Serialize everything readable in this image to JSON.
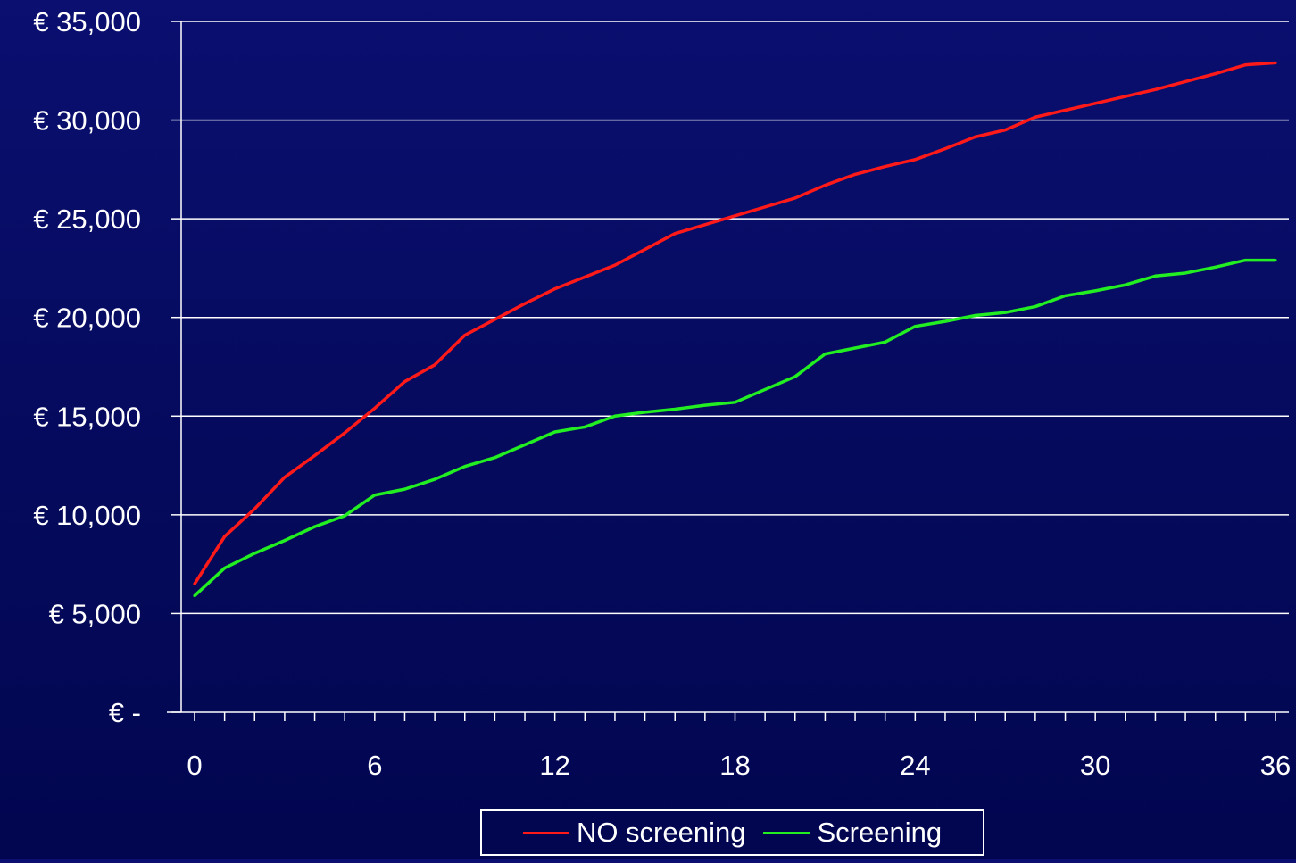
{
  "chart_data": {
    "type": "line",
    "title": "",
    "xlabel": "",
    "ylabel": "",
    "x_ticks": [
      "0",
      "6",
      "12",
      "18",
      "24",
      "30",
      "36"
    ],
    "y_ticks": [
      "€ -",
      "€ 5,000",
      "€ 10,000",
      "€ 15,000",
      "€ 20,000",
      "€ 25,000",
      "€ 30,000",
      "€ 35,000"
    ],
    "xlim": [
      0,
      36
    ],
    "ylim": [
      0,
      35000
    ],
    "grid": "horizontal",
    "legend_position": "bottom",
    "x": [
      0,
      1,
      2,
      3,
      4,
      5,
      6,
      7,
      8,
      9,
      10,
      11,
      12,
      13,
      14,
      15,
      16,
      17,
      18,
      19,
      20,
      21,
      22,
      23,
      24,
      25,
      26,
      27,
      28,
      29,
      30,
      31,
      32,
      33,
      34,
      35,
      36
    ],
    "series": [
      {
        "name": "NO screening",
        "color": "#ff1a1a",
        "values": [
          6500,
          8900,
          10300,
          11900,
          13000,
          14150,
          15400,
          16750,
          17600,
          19100,
          19900,
          20700,
          21450,
          22050,
          22650,
          23450,
          24250,
          24700,
          25150,
          25600,
          26050,
          26700,
          27250,
          27650,
          28000,
          28550,
          29150,
          29500,
          30150,
          30500,
          30850,
          31200,
          31550,
          31950,
          32350,
          32800,
          32900
        ]
      },
      {
        "name": "Screening",
        "color": "#22ee22",
        "values": [
          5900,
          7300,
          8050,
          8700,
          9400,
          9950,
          11000,
          11300,
          11800,
          12450,
          12900,
          13550,
          14200,
          14450,
          15000,
          15200,
          15350,
          15550,
          15700,
          16350,
          17000,
          18150,
          18450,
          18750,
          19550,
          19800,
          20100,
          20250,
          20550,
          21100,
          21350,
          21650,
          22100,
          22250,
          22550,
          22900,
          22900
        ]
      }
    ]
  }
}
